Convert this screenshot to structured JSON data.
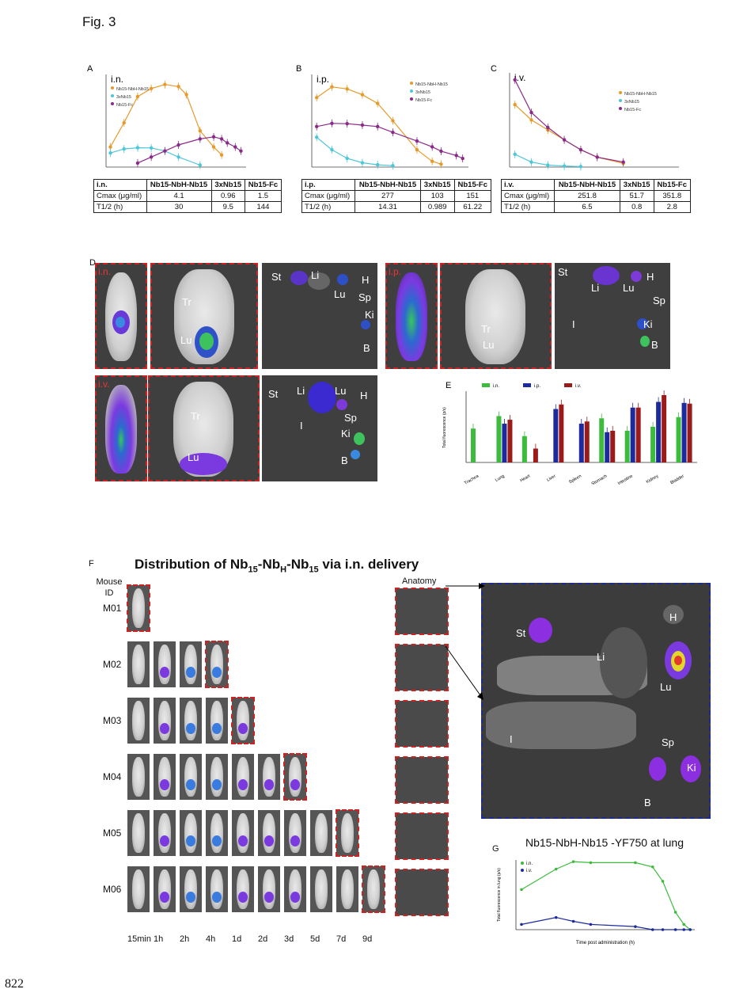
{
  "figure": {
    "title": "Fig. 3",
    "page_number": "822"
  },
  "colors": {
    "orange": "#e79a2c",
    "cyan": "#4dc6d9",
    "purple": "#8a2a8a",
    "green": "#3dbb3d",
    "blue": "#1d2a9e",
    "red": "#9b1b1b"
  },
  "panelA": {
    "letter": "A",
    "route": "i.n.",
    "legend": [
      "Nb15-NbH-Nb15",
      "3xNb15",
      "Nb15-Fc"
    ],
    "table": {
      "header": [
        "i.n.",
        "Nb15-NbH-Nb15",
        "3xNb15",
        "Nb15-Fc"
      ],
      "rows": [
        [
          "Cmax (μg/ml)",
          "4.1",
          "0.96",
          "1.5"
        ],
        [
          "T1/2 (h)",
          "30",
          "9.5",
          "144"
        ]
      ]
    }
  },
  "panelB": {
    "letter": "B",
    "route": "i.p.",
    "legend": [
      "Nb15-NbH-Nb15",
      "3xNb15",
      "Nb15-Fc"
    ],
    "table": {
      "header": [
        "i.p.",
        "Nb15-NbH-Nb15",
        "3xNb15",
        "Nb15-Fc"
      ],
      "rows": [
        [
          "Cmax (μg/ml)",
          "277",
          "103",
          "151"
        ],
        [
          "T1/2 (h)",
          "14.31",
          "0.989",
          "61.22"
        ]
      ]
    }
  },
  "panelC": {
    "letter": "C",
    "route": "i.v.",
    "legend": [
      "Nb15-NbH-Nb15",
      "3xNb15",
      "Nb15-Fc"
    ],
    "table": {
      "header": [
        "i.v.",
        "Nb15-NbH-Nb15",
        "3xNb15",
        "Nb15-Fc"
      ],
      "rows": [
        [
          "Cmax (μg/ml)",
          "251.8",
          "51.7",
          "351.8"
        ],
        [
          "T1/2 (h)",
          "6.5",
          "0.8",
          "2.8"
        ]
      ]
    }
  },
  "panelD": {
    "letter": "D",
    "blocks": [
      {
        "route": "i.n.",
        "labels": {
          "tr": "Tr",
          "lu": "Lu",
          "st": "St",
          "li": "Li",
          "lu2": "Lu",
          "h": "H",
          "sp": "Sp",
          "ki": "Ki",
          "b": "B"
        }
      },
      {
        "route": "i.p.",
        "labels": {
          "tr": "Tr",
          "lu": "Lu",
          "st": "St",
          "li": "Li",
          "lu2": "Lu",
          "h": "H",
          "sp": "Sp",
          "ki": "Ki",
          "b": "B",
          "i": "I"
        }
      },
      {
        "route": "i.v.",
        "labels": {
          "tr": "Tr",
          "lu": "Lu",
          "st": "St",
          "li": "Li",
          "lu2": "Lu",
          "h": "H",
          "sp": "Sp",
          "ki": "Ki",
          "b": "B",
          "i": "I"
        }
      }
    ]
  },
  "panelF": {
    "letter": "F",
    "title_main": "Distribution of Nb",
    "title_sub1": "15",
    "title_mid1": "-Nb",
    "title_sub2": "H",
    "title_mid2": "-Nb",
    "title_sub3": "15",
    "title_end": " via i.n. delivery",
    "mouse_id_label": "Mouse ID",
    "anatomy_label": "Anatomy",
    "mice": [
      "M01",
      "M02",
      "M03",
      "M04",
      "M05",
      "M06"
    ],
    "times": [
      "15min",
      "1h",
      "2h",
      "4h",
      "1d",
      "2d",
      "3d",
      "5d",
      "7d",
      "9d"
    ],
    "big_labels": {
      "st": "St",
      "li": "Li",
      "h": "H",
      "lu": "Lu",
      "i": "I",
      "sp": "Sp",
      "ki": "Ki",
      "b": "B"
    }
  },
  "panelG": {
    "letter": "G",
    "title": "Nb15-NbH-Nb15 -YF750 at lung",
    "legend": [
      "i.n.",
      "i.v."
    ]
  },
  "chart_data": [
    {
      "panel": "A",
      "type": "scatter",
      "title": "i.n.",
      "xscale": "log",
      "yscale": "linear",
      "series": [
        {
          "name": "Nb15-NbH-Nb15",
          "x": [
            0.25,
            0.5,
            1,
            2,
            4,
            8,
            12,
            24,
            48,
            72
          ],
          "y": [
            1.0,
            2.2,
            3.5,
            3.9,
            4.1,
            4.0,
            3.6,
            1.8,
            1.0,
            0.6
          ]
        },
        {
          "name": "3xNb15",
          "x": [
            0.25,
            0.5,
            1,
            2,
            4,
            8,
            24
          ],
          "y": [
            0.7,
            0.9,
            0.96,
            0.95,
            0.8,
            0.5,
            0.1
          ]
        },
        {
          "name": "Nb15-Fc",
          "x": [
            1,
            2,
            4,
            8,
            24,
            48,
            72,
            96,
            144,
            192
          ],
          "y": [
            0.2,
            0.5,
            0.8,
            1.1,
            1.4,
            1.5,
            1.4,
            1.2,
            1.0,
            0.8
          ]
        }
      ]
    },
    {
      "panel": "B",
      "type": "scatter",
      "title": "i.p.",
      "xscale": "log",
      "yscale": "linear",
      "series": [
        {
          "name": "Nb15-NbH-Nb15",
          "x": [
            0.25,
            0.5,
            1,
            2,
            4,
            8,
            24,
            48,
            72
          ],
          "y": [
            240,
            277,
            270,
            250,
            220,
            160,
            60,
            20,
            10
          ]
        },
        {
          "name": "3xNb15",
          "x": [
            0.25,
            0.5,
            1,
            2,
            4,
            8
          ],
          "y": [
            103,
            60,
            30,
            15,
            8,
            5
          ]
        },
        {
          "name": "Nb15-Fc",
          "x": [
            0.25,
            0.5,
            1,
            2,
            4,
            8,
            24,
            48,
            72,
            144,
            192
          ],
          "y": [
            140,
            151,
            150,
            145,
            140,
            120,
            90,
            70,
            55,
            40,
            30
          ]
        }
      ]
    },
    {
      "panel": "C",
      "type": "scatter",
      "title": "i.v.",
      "xscale": "log",
      "yscale": "linear",
      "series": [
        {
          "name": "Nb15-NbH-Nb15",
          "x": [
            0.25,
            0.5,
            1,
            2,
            4,
            8,
            24
          ],
          "y": [
            251.8,
            190,
            150,
            110,
            70,
            40,
            15
          ]
        },
        {
          "name": "3xNb15",
          "x": [
            0.25,
            0.5,
            1,
            2,
            4
          ],
          "y": [
            51.7,
            20,
            8,
            4,
            2
          ]
        },
        {
          "name": "Nb15-Fc",
          "x": [
            0.25,
            0.5,
            1,
            2,
            4,
            8,
            24
          ],
          "y": [
            351.8,
            220,
            160,
            110,
            70,
            40,
            20
          ]
        }
      ]
    },
    {
      "panel": "E",
      "type": "bar",
      "ylabel": "Total fluorescence (p/s)",
      "yscale": "log",
      "categories": [
        "Trachea",
        "Lung",
        "Heart",
        "Liver",
        "Spleen",
        "Stomach",
        "Intestine",
        "Kidney",
        "Bladder"
      ],
      "series": [
        {
          "name": "i.n.",
          "values": [
            8,
            40,
            3,
            null,
            null,
            30,
            6,
            10,
            35
          ]
        },
        {
          "name": "i.p.",
          "values": [
            null,
            15,
            null,
            100,
            15,
            5,
            120,
            250,
            220
          ]
        },
        {
          "name": "i.v.",
          "values": [
            null,
            25,
            0.6,
            180,
            20,
            6,
            120,
            600,
            200
          ]
        }
      ]
    },
    {
      "panel": "G",
      "type": "line",
      "title": "Nb15-NbH-Nb15 -YF750 at lung",
      "xlabel": "Time post administration (h)",
      "ylabel": "Total fluorescence in lung (p/s)",
      "xscale": "log",
      "series": [
        {
          "name": "i.n.",
          "x": [
            0.25,
            1,
            2,
            4,
            24,
            48,
            72,
            120,
            168,
            216
          ],
          "y": [
            20,
            300,
            800,
            700,
            700,
            400,
            60,
            1,
            0.2,
            0.1
          ]
        },
        {
          "name": "i.v.",
          "x": [
            0.25,
            1,
            2,
            4,
            24,
            48,
            72,
            120,
            168,
            216
          ],
          "y": [
            0.2,
            0.5,
            0.3,
            0.2,
            0.15,
            0.1,
            0.1,
            0.1,
            0.1,
            0.1
          ]
        }
      ]
    }
  ]
}
